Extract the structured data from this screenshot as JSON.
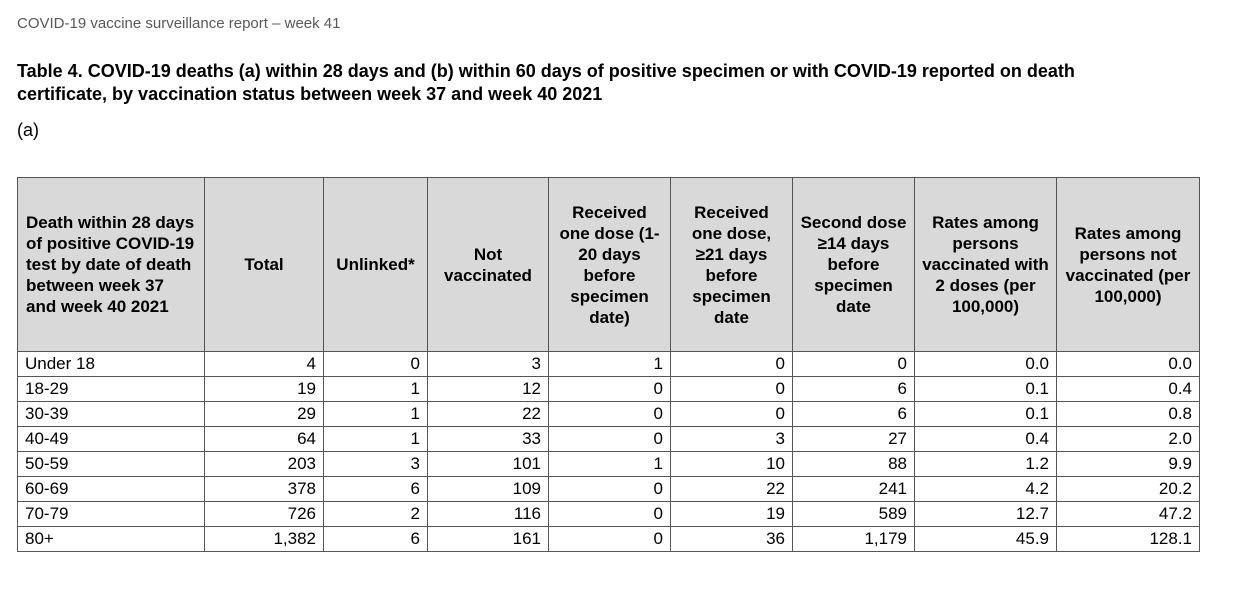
{
  "running_header": "COVID-19 vaccine surveillance report – week 41",
  "title": "Table 4. COVID-19 deaths (a) within 28 days and (b) within 60 days of positive specimen or with COVID-19 reported on death certificate, by vaccination status between week 37 and week 40 2021",
  "sub_label": "(a)",
  "table": {
    "headers": {
      "group": "Death within 28 days of positive COVID-19 test by date of death between week 37 and week 40 2021",
      "total": "Total",
      "unlinked": "Unlinked*",
      "not_vaccinated": "Not vaccinated",
      "one_dose_1_20": "Received one dose (1-20 days before specimen date)",
      "one_dose_21": "Received one dose, ≥21 days before specimen date",
      "second_dose": "Second dose ≥14 days before specimen date",
      "rate_vaccinated": "Rates among persons vaccinated with 2 doses (per 100,000)",
      "rate_not_vaccinated": "Rates among persons not vaccinated (per 100,000)"
    },
    "rows": [
      {
        "group": "Under 18",
        "total": "4",
        "unlinked": "0",
        "not_vaccinated": "3",
        "one_dose_1_20": "1",
        "one_dose_21": "0",
        "second_dose": "0",
        "rate_vaccinated": "0.0",
        "rate_not_vaccinated": "0.0"
      },
      {
        "group": "18-29",
        "total": "19",
        "unlinked": "1",
        "not_vaccinated": "12",
        "one_dose_1_20": "0",
        "one_dose_21": "0",
        "second_dose": "6",
        "rate_vaccinated": "0.1",
        "rate_not_vaccinated": "0.4"
      },
      {
        "group": "30-39",
        "total": "29",
        "unlinked": "1",
        "not_vaccinated": "22",
        "one_dose_1_20": "0",
        "one_dose_21": "0",
        "second_dose": "6",
        "rate_vaccinated": "0.1",
        "rate_not_vaccinated": "0.8"
      },
      {
        "group": "40-49",
        "total": "64",
        "unlinked": "1",
        "not_vaccinated": "33",
        "one_dose_1_20": "0",
        "one_dose_21": "3",
        "second_dose": "27",
        "rate_vaccinated": "0.4",
        "rate_not_vaccinated": "2.0"
      },
      {
        "group": "50-59",
        "total": "203",
        "unlinked": "3",
        "not_vaccinated": "101",
        "one_dose_1_20": "1",
        "one_dose_21": "10",
        "second_dose": "88",
        "rate_vaccinated": "1.2",
        "rate_not_vaccinated": "9.9"
      },
      {
        "group": "60-69",
        "total": "378",
        "unlinked": "6",
        "not_vaccinated": "109",
        "one_dose_1_20": "0",
        "one_dose_21": "22",
        "second_dose": "241",
        "rate_vaccinated": "4.2",
        "rate_not_vaccinated": "20.2"
      },
      {
        "group": "70-79",
        "total": "726",
        "unlinked": "2",
        "not_vaccinated": "116",
        "one_dose_1_20": "0",
        "one_dose_21": "19",
        "second_dose": "589",
        "rate_vaccinated": "12.7",
        "rate_not_vaccinated": "47.2"
      },
      {
        "group": "80+",
        "total": "1,382",
        "unlinked": "6",
        "not_vaccinated": "161",
        "one_dose_1_20": "0",
        "one_dose_21": "36",
        "second_dose": "1,179",
        "rate_vaccinated": "45.9",
        "rate_not_vaccinated": "128.1"
      }
    ]
  },
  "colors": {
    "header_fill": "#d9d9d9",
    "border": "#555555",
    "running_header_text": "#595959"
  }
}
